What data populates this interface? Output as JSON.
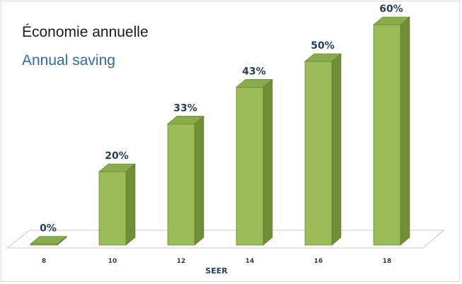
{
  "title_fr": "Économie annuelle",
  "title_en": "Annual saving",
  "chart_data": {
    "type": "bar",
    "style": "3d",
    "categories": [
      "8",
      "10",
      "12",
      "14",
      "16",
      "18"
    ],
    "values": [
      0,
      20,
      33,
      43,
      50,
      60
    ],
    "data_labels": [
      "0%",
      "20%",
      "33%",
      "43%",
      "50%",
      "60%"
    ],
    "xlabel": "SEER",
    "ylabel": "",
    "ylim": [
      0,
      60
    ],
    "grid": false,
    "legend": "none",
    "colors": {
      "bar_front": "#9bbb59",
      "bar_top": "#8aab4c",
      "bar_side": "#6f8f36",
      "bar_edge": "#5e7a2e",
      "floor": "#ffffff",
      "floor_edge": "#c8c8c8",
      "labels": "#243f60"
    }
  }
}
